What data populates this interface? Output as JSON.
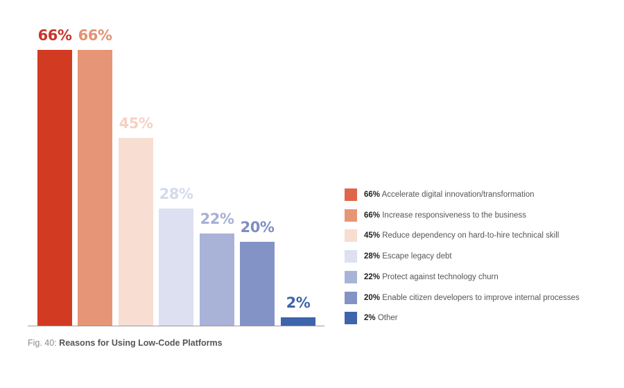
{
  "chart_data": {
    "type": "bar",
    "title": "Reasons for Using Low-Code Platforms",
    "figure_label": "Fig. 40:",
    "xlabel": "",
    "ylabel": "",
    "ylim": [
      0,
      66
    ],
    "grid": false,
    "legend_position": "right",
    "categories": [
      "Accelerate digital innovation/transformation",
      "Increase responsiveness to the business",
      "Reduce dependency on hard-to-hire technical skill",
      "Escape legacy debt",
      "Protect against technology churn",
      "Enable citizen developers to improve internal processes",
      "Other"
    ],
    "values": [
      66,
      66,
      45,
      28,
      22,
      20,
      2
    ],
    "value_labels": [
      "66%",
      "66%",
      "45%",
      "28%",
      "22%",
      "20%",
      "2%"
    ],
    "colors": [
      "#d33a22",
      "#e69676",
      "#f8ddd3",
      "#dde0f0",
      "#a9b3d8",
      "#8393c6",
      "#3e64ab"
    ],
    "label_colors": [
      "#c8352a",
      "#e39273",
      "#f4d2c5",
      "#d5d9ee",
      "#a6b0d6",
      "#7e8ec3",
      "#3e64ab"
    ],
    "legend_colors": [
      "#df6649",
      "#e69676",
      "#f8ddd3",
      "#dde0f0",
      "#a9b3d8",
      "#8393c6",
      "#3e64ab"
    ]
  },
  "legend": {
    "items": [
      {
        "pct": "66%",
        "label": "Accelerate digital innovation/transformation"
      },
      {
        "pct": "66%",
        "label": "Increase responsiveness to the business"
      },
      {
        "pct": "45%",
        "label": "Reduce dependency on hard-to-hire technical skill"
      },
      {
        "pct": "28%",
        "label": "Escape legacy debt"
      },
      {
        "pct": "22%",
        "label": "Protect against technology churn"
      },
      {
        "pct": "20%",
        "label": "Enable citizen developers to improve internal processes"
      },
      {
        "pct": "2%",
        "label": "Other"
      }
    ]
  },
  "caption": {
    "prefix": "Fig. 40: ",
    "title": "Reasons for Using Low-Code Platforms"
  }
}
